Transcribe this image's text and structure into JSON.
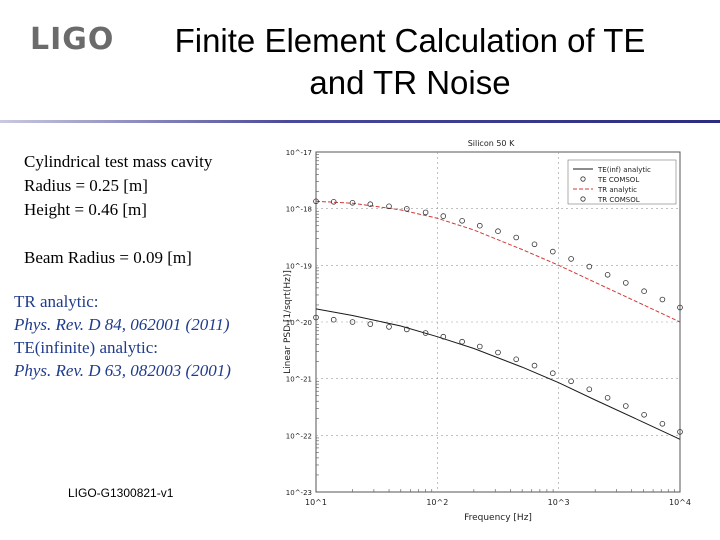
{
  "logo": "LIGO",
  "title": {
    "line1": "Finite Element Calculation of TE",
    "line2": "and TR Noise"
  },
  "setup": {
    "line1": "Cylindrical test mass cavity",
    "line2": "Radius = 0.25 [m]",
    "line3": "Height = 0.46 [m]",
    "beam": "Beam Radius = 0.09 [m]"
  },
  "references": {
    "tr_label": "TR analytic:",
    "tr_ref": "Phys. Rev. D 84, 062001 (2011)",
    "te_label": "TE(infinite) analytic:",
    "te_ref": "Phys. Rev. D 63, 082003 (2001)"
  },
  "footer": "LIGO-G1300821-v1",
  "chart_data": {
    "type": "line",
    "title": "Silicon 50 K",
    "xlabel": "Frequency [Hz]",
    "ylabel": "Linear PSD [1/sqrt(Hz)]",
    "x_scale": "log",
    "y_scale": "log",
    "xlim": [
      10,
      10000
    ],
    "ylim": [
      1e-23,
      1e-17
    ],
    "x_ticks": [
      "10^1",
      "10^2",
      "10^3",
      "10^4"
    ],
    "y_ticks": [
      "10^-23",
      "10^-22",
      "10^-21",
      "10^-20",
      "10^-19",
      "10^-18",
      "10^-17"
    ],
    "legend_position": "top-right",
    "legend": [
      "TE(inf) analytic",
      "TE COMSOL",
      "TR analytic",
      "TR COMSOL"
    ],
    "colors": {
      "te_line": "#1a1a1a",
      "tr_line": "#d03a3a",
      "marker": "#333333"
    },
    "series": [
      {
        "name": "TE(inf) analytic",
        "style": "line",
        "x": [
          10,
          20,
          50,
          100,
          200,
          500,
          1000,
          2000,
          5000,
          10000
        ],
        "y": [
          1.7e-20,
          1.3e-20,
          8.5e-21,
          5.5e-21,
          3.4e-21,
          1.6e-21,
          8.5e-22,
          4.2e-22,
          1.7e-22,
          8.5e-23
        ]
      },
      {
        "name": "TE COMSOL",
        "style": "markers",
        "x": [
          10,
          14,
          20,
          28,
          40,
          56,
          80,
          112,
          160,
          224,
          316,
          447,
          632,
          894,
          1265,
          1789,
          2530,
          3578,
          5060,
          7155,
          10000
        ],
        "y": [
          1.2e-20,
          1.1e-20,
          1e-20,
          9.2e-21,
          8.2e-21,
          7.4e-21,
          6.4e-21,
          5.5e-21,
          4.5e-21,
          3.7e-21,
          2.9e-21,
          2.2e-21,
          1.7e-21,
          1.25e-21,
          9e-22,
          6.5e-22,
          4.6e-22,
          3.3e-22,
          2.3e-22,
          1.6e-22,
          1.15e-22
        ]
      },
      {
        "name": "TR analytic",
        "style": "line",
        "x": [
          10,
          20,
          50,
          100,
          200,
          500,
          1000,
          2000,
          5000,
          10000
        ],
        "y": [
          1.35e-18,
          1.25e-18,
          9.5e-19,
          6.8e-19,
          4.2e-19,
          1.9e-19,
          1e-19,
          5e-20,
          2e-20,
          1e-20
        ]
      },
      {
        "name": "TR COMSOL",
        "style": "markers",
        "x": [
          10,
          14,
          20,
          28,
          40,
          56,
          80,
          112,
          160,
          224,
          316,
          447,
          632,
          894,
          1265,
          1789,
          2530,
          3578,
          5060,
          7155,
          10000
        ],
        "y": [
          1.35e-18,
          1.32e-18,
          1.27e-18,
          1.2e-18,
          1.1e-18,
          9.9e-19,
          8.6e-19,
          7.4e-19,
          6.1e-19,
          5e-19,
          4e-19,
          3.1e-19,
          2.35e-19,
          1.75e-19,
          1.3e-19,
          9.5e-20,
          6.8e-20,
          4.9e-20,
          3.5e-20,
          2.5e-20,
          1.8e-20
        ]
      }
    ]
  }
}
